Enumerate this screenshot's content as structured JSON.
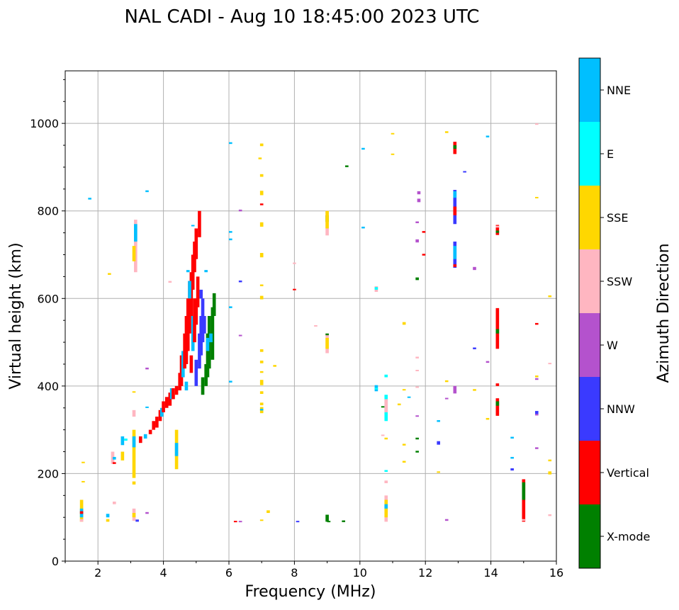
{
  "chart_data": {
    "type": "scatter",
    "title": "NAL CADI - Aug 10 18:45:00 2023 UTC",
    "xlabel": "Frequency (MHz)",
    "ylabel": "Virtual height (km)",
    "xlim": [
      1,
      16
    ],
    "ylim": [
      0,
      1120
    ],
    "xticks": [
      2,
      4,
      6,
      8,
      10,
      12,
      14,
      16
    ],
    "yticks": [
      0,
      200,
      400,
      600,
      800,
      1000
    ],
    "grid": true,
    "colorbar": {
      "label": "Azimuth Direction",
      "categories": [
        "X-mode",
        "Vertical",
        "NNW",
        "W",
        "SSW",
        "SSE",
        "E",
        "NNE"
      ],
      "colors": [
        "#008000",
        "#ff0000",
        "#3a3aff",
        "#b452cd",
        "#ffb6c1",
        "#ffd700",
        "#00ffff",
        "#00bfff"
      ]
    },
    "segment_format": "[frequency_MHz, height_start_km, height_end_km, direction_index]",
    "segments": [
      [
        1.5,
        90,
        140,
        5
      ],
      [
        1.5,
        100,
        120,
        7
      ],
      [
        1.5,
        108,
        114,
        1
      ],
      [
        1.5,
        90,
        96,
        4
      ],
      [
        1.55,
        180,
        183,
        5
      ],
      [
        1.55,
        224,
        227,
        5
      ],
      [
        1.75,
        826,
        830,
        7
      ],
      [
        2.3,
        90,
        96,
        5
      ],
      [
        2.3,
        100,
        108,
        7
      ],
      [
        2.35,
        654,
        658,
        5
      ],
      [
        2.45,
        222,
        250,
        4
      ],
      [
        2.5,
        222,
        226,
        1
      ],
      [
        2.5,
        232,
        238,
        7
      ],
      [
        2.5,
        130,
        136,
        4
      ],
      [
        2.75,
        230,
        250,
        5
      ],
      [
        2.75,
        265,
        285,
        7
      ],
      [
        2.85,
        275,
        280,
        6
      ],
      [
        3.1,
        175,
        182,
        5
      ],
      [
        3.1,
        190,
        300,
        5
      ],
      [
        3.1,
        260,
        285,
        7
      ],
      [
        3.1,
        330,
        345,
        4
      ],
      [
        3.1,
        92,
        120,
        4
      ],
      [
        3.1,
        100,
        110,
        5
      ],
      [
        3.1,
        385,
        388,
        5
      ],
      [
        3.15,
        660,
        780,
        4
      ],
      [
        3.1,
        685,
        720,
        5
      ],
      [
        3.15,
        730,
        770,
        7
      ],
      [
        3.2,
        90,
        95,
        2
      ],
      [
        3.5,
        843,
        847,
        7
      ],
      [
        3.5,
        438,
        442,
        3
      ],
      [
        3.5,
        108,
        112,
        3
      ],
      [
        3.5,
        350,
        353,
        7
      ],
      [
        4.4,
        210,
        300,
        5
      ],
      [
        4.4,
        240,
        270,
        7
      ],
      [
        4.2,
        636,
        640,
        4
      ],
      [
        3.3,
        270,
        285,
        1
      ],
      [
        3.45,
        280,
        290,
        7
      ],
      [
        3.6,
        290,
        300,
        1
      ],
      [
        3.7,
        300,
        320,
        1
      ],
      [
        3.8,
        305,
        330,
        1
      ],
      [
        3.9,
        320,
        345,
        1
      ],
      [
        3.95,
        330,
        350,
        7
      ],
      [
        4.0,
        340,
        365,
        1
      ],
      [
        4.1,
        350,
        375,
        1
      ],
      [
        4.2,
        355,
        385,
        1
      ],
      [
        4.25,
        370,
        395,
        7
      ],
      [
        4.3,
        370,
        395,
        1
      ],
      [
        4.4,
        380,
        400,
        1
      ],
      [
        4.5,
        390,
        430,
        1
      ],
      [
        4.55,
        400,
        470,
        1
      ],
      [
        4.6,
        420,
        480,
        7
      ],
      [
        4.65,
        440,
        520,
        1
      ],
      [
        4.7,
        450,
        560,
        1
      ],
      [
        4.75,
        480,
        600,
        1
      ],
      [
        4.8,
        520,
        640,
        1
      ],
      [
        4.85,
        560,
        660,
        1
      ],
      [
        4.9,
        620,
        700,
        1
      ],
      [
        4.95,
        660,
        730,
        1
      ],
      [
        5.0,
        690,
        760,
        1
      ],
      [
        5.1,
        740,
        800,
        1
      ],
      [
        4.85,
        430,
        470,
        1
      ],
      [
        4.9,
        480,
        560,
        7
      ],
      [
        4.95,
        500,
        600,
        1
      ],
      [
        5.0,
        540,
        600,
        1
      ],
      [
        5.05,
        580,
        650,
        1
      ],
      [
        4.7,
        390,
        410,
        7
      ],
      [
        4.8,
        600,
        640,
        7
      ],
      [
        4.75,
        660,
        665,
        7
      ],
      [
        4.9,
        765,
        768,
        7
      ],
      [
        5.0,
        400,
        460,
        2
      ],
      [
        5.1,
        440,
        520,
        2
      ],
      [
        5.15,
        470,
        560,
        2
      ],
      [
        5.2,
        500,
        600,
        2
      ],
      [
        5.25,
        520,
        560,
        2
      ],
      [
        5.15,
        600,
        620,
        2
      ],
      [
        5.2,
        380,
        420,
        0
      ],
      [
        5.3,
        400,
        450,
        0
      ],
      [
        5.35,
        420,
        520,
        0
      ],
      [
        5.4,
        440,
        560,
        0
      ],
      [
        5.5,
        460,
        580,
        0
      ],
      [
        5.55,
        560,
        612,
        0
      ],
      [
        5.35,
        480,
        510,
        7
      ],
      [
        5.45,
        500,
        520,
        7
      ],
      [
        5.3,
        660,
        665,
        7
      ],
      [
        6.05,
        953,
        957,
        7
      ],
      [
        6.05,
        750,
        754,
        7
      ],
      [
        6.05,
        733,
        737,
        7
      ],
      [
        6.05,
        578,
        582,
        7
      ],
      [
        6.05,
        408,
        412,
        7
      ],
      [
        6.2,
        89,
        92,
        1
      ],
      [
        6.35,
        89,
        92,
        3
      ],
      [
        6.35,
        799,
        803,
        3
      ],
      [
        6.35,
        637,
        641,
        2
      ],
      [
        6.35,
        514,
        517,
        3
      ],
      [
        7.0,
        948,
        954,
        5
      ],
      [
        6.95,
        918,
        922,
        5
      ],
      [
        7.0,
        878,
        884,
        5
      ],
      [
        7.0,
        836,
        846,
        5
      ],
      [
        7.0,
        813,
        817,
        1
      ],
      [
        7.0,
        764,
        774,
        5
      ],
      [
        7.0,
        694,
        704,
        5
      ],
      [
        7.0,
        628,
        632,
        5
      ],
      [
        7.0,
        598,
        606,
        5
      ],
      [
        7.0,
        478,
        484,
        5
      ],
      [
        7.0,
        452,
        458,
        5
      ],
      [
        7.0,
        430,
        434,
        5
      ],
      [
        7.0,
        402,
        414,
        5
      ],
      [
        7.0,
        382,
        388,
        5
      ],
      [
        7.0,
        356,
        362,
        5
      ],
      [
        7.0,
        338,
        352,
        5
      ],
      [
        7.0,
        344,
        348,
        7
      ],
      [
        7.0,
        92,
        95,
        5
      ],
      [
        7.2,
        110,
        116,
        5
      ],
      [
        7.4,
        444,
        448,
        5
      ],
      [
        8.0,
        679,
        682,
        4
      ],
      [
        8.0,
        619,
        622,
        1
      ],
      [
        8.65,
        536,
        539,
        4
      ],
      [
        8.1,
        89,
        92,
        2
      ],
      [
        9.0,
        90,
        106,
        0
      ],
      [
        9.05,
        89,
        92,
        0
      ],
      [
        9.0,
        475,
        520,
        4
      ],
      [
        9.0,
        485,
        510,
        5
      ],
      [
        9.0,
        516,
        520,
        0
      ],
      [
        9.0,
        744,
        800,
        4
      ],
      [
        9.0,
        775,
        790,
        0
      ],
      [
        9.0,
        760,
        800,
        5
      ],
      [
        9.5,
        89,
        93,
        0
      ],
      [
        9.6,
        900,
        904,
        0
      ],
      [
        10.1,
        940,
        944,
        7
      ],
      [
        10.1,
        760,
        764,
        7
      ],
      [
        10.5,
        388,
        402,
        7
      ],
      [
        10.5,
        392,
        396,
        6
      ],
      [
        10.5,
        615,
        628,
        4
      ],
      [
        10.5,
        620,
        626,
        6
      ],
      [
        10.7,
        352,
        354,
        0
      ],
      [
        10.7,
        286,
        289,
        4
      ],
      [
        10.8,
        90,
        150,
        4
      ],
      [
        10.8,
        100,
        140,
        5
      ],
      [
        10.8,
        120,
        130,
        7
      ],
      [
        10.8,
        178,
        184,
        4
      ],
      [
        10.8,
        204,
        208,
        6
      ],
      [
        10.8,
        278,
        282,
        5
      ],
      [
        10.8,
        320,
        380,
        6
      ],
      [
        10.8,
        340,
        370,
        4
      ],
      [
        10.8,
        420,
        426,
        6
      ],
      [
        11.0,
        975,
        978,
        5
      ],
      [
        11.0,
        928,
        931,
        5
      ],
      [
        11.2,
        356,
        360,
        5
      ],
      [
        11.35,
        540,
        546,
        5
      ],
      [
        11.35,
        390,
        393,
        5
      ],
      [
        11.35,
        264,
        268,
        5
      ],
      [
        11.35,
        225,
        229,
        5
      ],
      [
        11.5,
        373,
        376,
        7
      ],
      [
        11.8,
        838,
        845,
        3
      ],
      [
        11.8,
        820,
        828,
        3
      ],
      [
        11.75,
        772,
        776,
        3
      ],
      [
        11.75,
        728,
        735,
        3
      ],
      [
        11.75,
        642,
        648,
        0
      ],
      [
        11.75,
        463,
        467,
        4
      ],
      [
        11.75,
        434,
        437,
        4
      ],
      [
        11.75,
        396,
        399,
        4
      ],
      [
        11.75,
        330,
        333,
        3
      ],
      [
        11.75,
        278,
        282,
        0
      ],
      [
        11.75,
        248,
        252,
        0
      ],
      [
        11.95,
        750,
        754,
        1
      ],
      [
        11.95,
        698,
        702,
        1
      ],
      [
        12.4,
        318,
        322,
        7
      ],
      [
        12.4,
        266,
        274,
        2
      ],
      [
        12.4,
        202,
        205,
        5
      ],
      [
        12.65,
        978,
        982,
        5
      ],
      [
        12.65,
        409,
        413,
        5
      ],
      [
        12.65,
        370,
        373,
        3
      ],
      [
        12.65,
        92,
        96,
        3
      ],
      [
        12.9,
        930,
        958,
        1
      ],
      [
        12.9,
        942,
        950,
        0
      ],
      [
        12.9,
        770,
        848,
        2
      ],
      [
        12.9,
        830,
        845,
        7
      ],
      [
        12.9,
        790,
        810,
        1
      ],
      [
        12.9,
        670,
        730,
        2
      ],
      [
        12.9,
        690,
        720,
        7
      ],
      [
        12.9,
        672,
        678,
        1
      ],
      [
        12.9,
        383,
        400,
        3
      ],
      [
        13.2,
        888,
        891,
        2
      ],
      [
        13.5,
        665,
        672,
        3
      ],
      [
        13.5,
        389,
        393,
        5
      ],
      [
        13.5,
        484,
        488,
        2
      ],
      [
        13.9,
        968,
        972,
        7
      ],
      [
        13.9,
        453,
        457,
        3
      ],
      [
        13.9,
        323,
        327,
        5
      ],
      [
        14.2,
        745,
        768,
        1
      ],
      [
        14.2,
        750,
        755,
        0
      ],
      [
        14.2,
        762,
        766,
        4
      ],
      [
        14.2,
        485,
        578,
        1
      ],
      [
        14.2,
        520,
        530,
        0
      ],
      [
        14.2,
        400,
        406,
        1
      ],
      [
        14.2,
        332,
        372,
        1
      ],
      [
        14.2,
        355,
        365,
        0
      ],
      [
        14.65,
        280,
        284,
        7
      ],
      [
        14.65,
        234,
        238,
        7
      ],
      [
        14.65,
        207,
        212,
        2
      ],
      [
        15.0,
        90,
        187,
        1
      ],
      [
        15.0,
        140,
        180,
        0
      ],
      [
        15.0,
        92,
        96,
        4
      ],
      [
        15.4,
        998,
        1000,
        4
      ],
      [
        15.4,
        829,
        832,
        5
      ],
      [
        15.4,
        540,
        544,
        1
      ],
      [
        15.4,
        420,
        424,
        5
      ],
      [
        15.4,
        414,
        418,
        3
      ],
      [
        15.4,
        336,
        343,
        2
      ],
      [
        15.4,
        333,
        336,
        3
      ],
      [
        15.4,
        256,
        260,
        3
      ],
      [
        15.8,
        603,
        607,
        5
      ],
      [
        15.8,
        450,
        453,
        4
      ],
      [
        15.8,
        228,
        232,
        5
      ],
      [
        15.8,
        198,
        205,
        5
      ],
      [
        15.8,
        103,
        107,
        4
      ]
    ]
  }
}
